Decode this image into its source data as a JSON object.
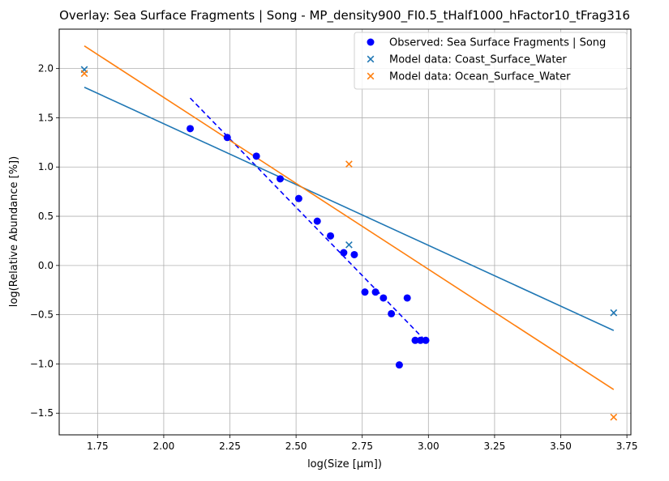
{
  "chart_data": {
    "type": "scatter",
    "title": "Overlay: Sea Surface Fragments | Song - MP_density900_FI0.5_tHalf1000_hFactor10_tFrag316",
    "xlabel": "log(Size [μm])",
    "ylabel": "log(Relative Abundance [%])",
    "xlim": [
      1.605,
      3.765
    ],
    "ylim": [
      -1.72,
      2.4
    ],
    "xticks": [
      1.75,
      2.0,
      2.25,
      2.5,
      2.75,
      3.0,
      3.25,
      3.5,
      3.75
    ],
    "xtick_labels": [
      "1.75",
      "2.00",
      "2.25",
      "2.50",
      "2.75",
      "3.00",
      "3.25",
      "3.50",
      "3.75"
    ],
    "yticks": [
      -1.5,
      -1.0,
      -0.5,
      0.0,
      0.5,
      1.0,
      1.5,
      2.0
    ],
    "ytick_labels": [
      "−1.5",
      "−1.0",
      "−0.5",
      "0.0",
      "0.5",
      "1.0",
      "1.5",
      "2.0"
    ],
    "grid": true,
    "legend_position": "top-right",
    "series": [
      {
        "name": "Observed: Sea Surface Fragments | Song",
        "kind": "scatter",
        "marker": "circle",
        "color": "#0000ff",
        "x": [
          2.1,
          2.24,
          2.35,
          2.44,
          2.51,
          2.58,
          2.63,
          2.68,
          2.72,
          2.76,
          2.8,
          2.83,
          2.86,
          2.89,
          2.92,
          2.95,
          2.97,
          2.99
        ],
        "y": [
          1.39,
          1.3,
          1.11,
          0.88,
          0.68,
          0.45,
          0.3,
          0.13,
          0.11,
          -0.27,
          -0.27,
          -0.33,
          -0.49,
          -1.01,
          -0.33,
          -0.76,
          -0.76,
          -0.76
        ]
      },
      {
        "name": "Model data: Coast_Surface_Water",
        "kind": "scatter",
        "marker": "x",
        "color": "#1f77b4",
        "x": [
          1.7,
          2.7,
          3.7
        ],
        "y": [
          1.99,
          0.21,
          -0.48
        ]
      },
      {
        "name": "Model data: Ocean_Surface_Water",
        "kind": "scatter",
        "marker": "x",
        "color": "#ff7f0e",
        "x": [
          1.7,
          2.7,
          3.7
        ],
        "y": [
          1.95,
          1.03,
          -1.54
        ]
      }
    ],
    "fit_lines": [
      {
        "color": "#0000ff",
        "dashed": true,
        "x": [
          2.1,
          2.98
        ],
        "y": [
          1.7,
          -0.74
        ]
      },
      {
        "color": "#1f77b4",
        "dashed": false,
        "x": [
          1.7,
          3.7
        ],
        "y": [
          1.81,
          -0.66
        ]
      },
      {
        "color": "#ff7f0e",
        "dashed": false,
        "x": [
          1.7,
          3.7
        ],
        "y": [
          2.23,
          -1.26
        ]
      }
    ]
  }
}
